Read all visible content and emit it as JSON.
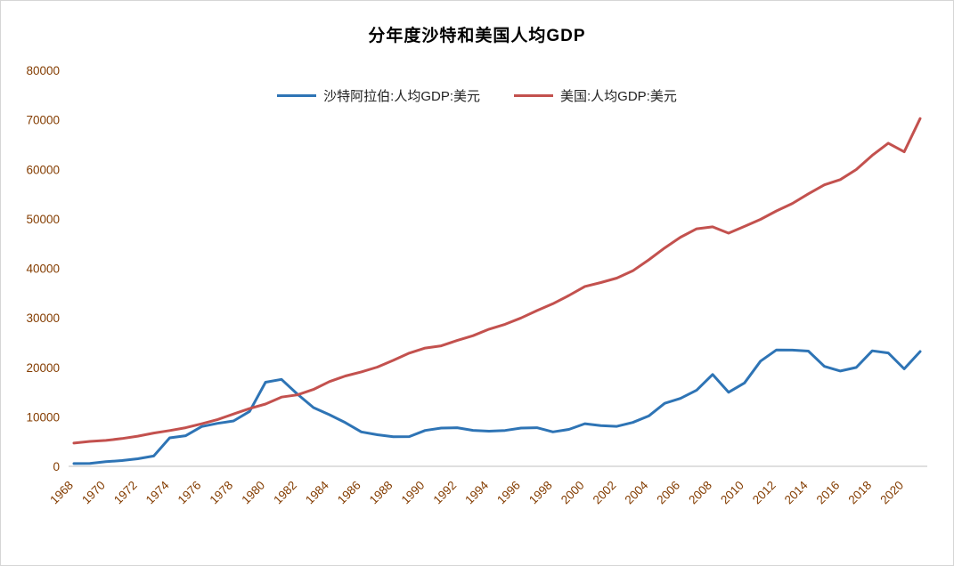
{
  "page": {
    "title": "分年度沙特和美国人均GDP"
  },
  "chart_data": {
    "type": "line",
    "title": "分年度沙特和美国人均GDP",
    "xlabel": "",
    "ylabel": "",
    "ylim": [
      0,
      80000
    ],
    "ytick_step": 10000,
    "xtick_step": 2,
    "grid": false,
    "legend_position": "top-center",
    "axis_label_color": "#833C00",
    "axis_line_color": "#bfbfbf",
    "x": [
      1968,
      1969,
      1970,
      1971,
      1972,
      1973,
      1974,
      1975,
      1976,
      1977,
      1978,
      1979,
      1980,
      1981,
      1982,
      1983,
      1984,
      1985,
      1986,
      1987,
      1988,
      1989,
      1990,
      1991,
      1992,
      1993,
      1994,
      1995,
      1996,
      1997,
      1998,
      1999,
      2000,
      2001,
      2002,
      2003,
      2004,
      2005,
      2006,
      2007,
      2008,
      2009,
      2010,
      2011,
      2012,
      2013,
      2014,
      2015,
      2016,
      2017,
      2018,
      2019,
      2020,
      2021
    ],
    "xtick_labels": [
      "1968",
      "1970",
      "1972",
      "1974",
      "1976",
      "1978",
      "1980",
      "1982",
      "1984",
      "1986",
      "1988",
      "1990",
      "1992",
      "1994",
      "1996",
      "1998",
      "2000",
      "2002",
      "2004",
      "2006",
      "2008",
      "2010",
      "2012",
      "2014",
      "2016",
      "2018",
      "2020"
    ],
    "ytick_labels": [
      "0",
      "10000",
      "20000",
      "30000",
      "40000",
      "50000",
      "60000",
      "70000",
      "80000"
    ],
    "series": [
      {
        "name": "沙特阿拉伯:人均GDP:美元",
        "color": "#2E74B5",
        "values": [
          560,
          600,
          930,
          1170,
          1520,
          2090,
          5750,
          6180,
          8030,
          8690,
          9170,
          11100,
          16980,
          17570,
          14580,
          11870,
          10430,
          8830,
          6960,
          6380,
          5990,
          6010,
          7250,
          7730,
          7800,
          7260,
          7100,
          7240,
          7730,
          7810,
          6960,
          7460,
          8610,
          8220,
          8070,
          8870,
          10170,
          12730,
          13740,
          15390,
          18560,
          14950,
          16840,
          21250,
          23510,
          23480,
          23280,
          20190,
          19250,
          19980,
          23340,
          22910,
          19680,
          23190
        ]
      },
      {
        "name": "美国:人均GDP:美元",
        "color": "#C3514E",
        "values": [
          4700,
          5030,
          5230,
          5610,
          6090,
          6730,
          7230,
          7800,
          8590,
          9450,
          10570,
          11670,
          12580,
          13980,
          14430,
          15540,
          17120,
          18240,
          19070,
          20040,
          21420,
          22860,
          23890,
          24340,
          25420,
          26390,
          27700,
          28690,
          29970,
          31460,
          32850,
          34510,
          36330,
          37130,
          38020,
          39500,
          41710,
          44120,
          46300,
          47980,
          48380,
          47100,
          48470,
          49880,
          51600,
          53110,
          55050,
          56860,
          57930,
          59960,
          62820,
          65280,
          63540,
          70250
        ]
      }
    ]
  }
}
